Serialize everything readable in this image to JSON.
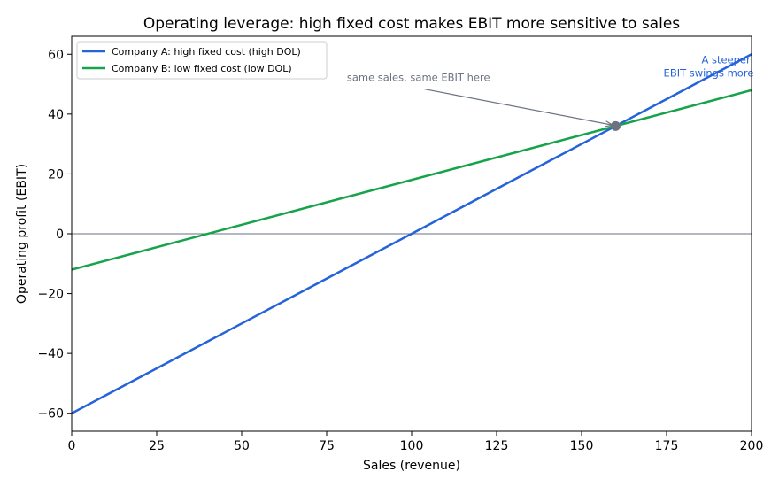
{
  "chart_data": {
    "type": "line",
    "title": "Operating leverage: high fixed cost makes EBIT more sensitive to sales",
    "xlabel": "Sales (revenue)",
    "ylabel": "Operating profit (EBIT)",
    "xlim": [
      0,
      200
    ],
    "ylim": [
      -66,
      66
    ],
    "x_ticks": [
      0,
      25,
      50,
      75,
      100,
      125,
      150,
      175,
      200
    ],
    "y_ticks": [
      -60,
      -40,
      -20,
      0,
      20,
      40,
      60
    ],
    "x_tick_labels": [
      "0",
      "25",
      "50",
      "75",
      "100",
      "125",
      "150",
      "175",
      "200"
    ],
    "y_tick_labels": [
      "−60",
      "−40",
      "−20",
      "0",
      "20",
      "40",
      "60"
    ],
    "grid": false,
    "legend_position": "top-left",
    "zero_line": true,
    "series": [
      {
        "name": "Company A: high fixed cost (high DOL)",
        "color": "#2563db",
        "x": [
          0,
          200
        ],
        "y": [
          -60,
          60
        ]
      },
      {
        "name": "Company B: low fixed cost (low DOL)",
        "color": "#16a34a",
        "x": [
          0,
          200
        ],
        "y": [
          -12,
          48
        ]
      }
    ],
    "highlight_point": {
      "x": 160,
      "y": 36,
      "color": "#6b7280"
    },
    "annotations": [
      {
        "text": "same sales, same EBIT here",
        "color": "#6b7280",
        "text_x": 102,
        "text_y": 51,
        "arrow_to": [
          160,
          36
        ]
      },
      {
        "lines": [
          "A steeper:",
          "EBIT swings more"
        ],
        "color": "#2563db",
        "text_x": 185,
        "text_y": 57
      }
    ]
  }
}
